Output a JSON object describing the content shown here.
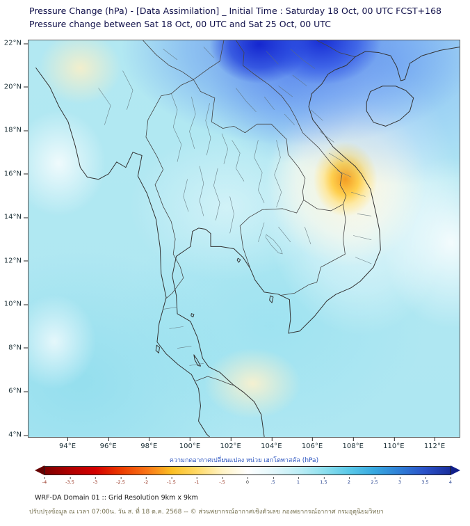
{
  "header": {
    "title_line1": "Pressure Change (hPa) - [Data Assimilation] _ Initial Time : Saturday 18 Oct, 00 UTC FCST+168",
    "title_line2": "Pressure change between Sat 18 Oct, 00 UTC and Sat 25 Oct, 00 UTC"
  },
  "map": {
    "lat_ticks": [
      "22°N",
      "20°N",
      "18°N",
      "16°N",
      "14°N",
      "12°N",
      "10°N",
      "8°N",
      "6°N",
      "4°N"
    ],
    "lon_ticks": [
      "94°E",
      "96°E",
      "98°E",
      "100°E",
      "102°E",
      "104°E",
      "106°E",
      "108°E",
      "110°E",
      "112°E"
    ],
    "notable_features": [
      {
        "area": "Northern Vietnam / far north of map",
        "value_hpa": "+3 to +4 (strong pressure rise, dark blue)"
      },
      {
        "area": "Central Vietnam coast near 15.5-16N, 107-108.5E",
        "value_hpa": "-1 to -2 (pressure fall, yellow/orange spot)"
      },
      {
        "area": "Thailand, Laos, Cambodia, Gulf of Thailand and Andaman Sea",
        "value_hpa": "0 to +1.5 (light cyan)"
      }
    ]
  },
  "colorbar": {
    "label": "ความกดอากาศเปลี่ยนแปลง หน่วย เฮกโตพาสคัล (hPa)",
    "min": -4,
    "max": 4,
    "ticks": [
      "-4",
      "-3.5",
      "-3",
      "-2.5",
      "-2",
      "-1.5",
      "-1",
      "-.5",
      "0",
      ".5",
      "1",
      "1.5",
      "2",
      "2.5",
      "3",
      "3.5",
      "4"
    ],
    "gradient": [
      "#7f0000",
      "#b00000",
      "#d40000",
      "#ec3b00",
      "#f97316",
      "#fbbf24",
      "#ffd966",
      "#fff3c4",
      "#ffffff",
      "#e3f7fb",
      "#bfeef6",
      "#8fe0ee",
      "#5bc9e8",
      "#38a9e0",
      "#2f7fd6",
      "#2b52c8",
      "#1a2f9e"
    ],
    "left_arrow_color": "#660000",
    "right_arrow_color": "#101f8a"
  },
  "footer": {
    "line1": "WRF-DA Domain 01 :: Grid Resolution 9km x 9km",
    "line2": "ปรับปรุงข้อมูล ณ เวลา 07:00น. วัน ส. ที่ 18 ต.ค. 2568 -- © ส่วนพยากรณ์อากาศเชิงตัวเลข กองพยากรณ์อากาศ กรมอุตุนิยมวิทยา"
  }
}
